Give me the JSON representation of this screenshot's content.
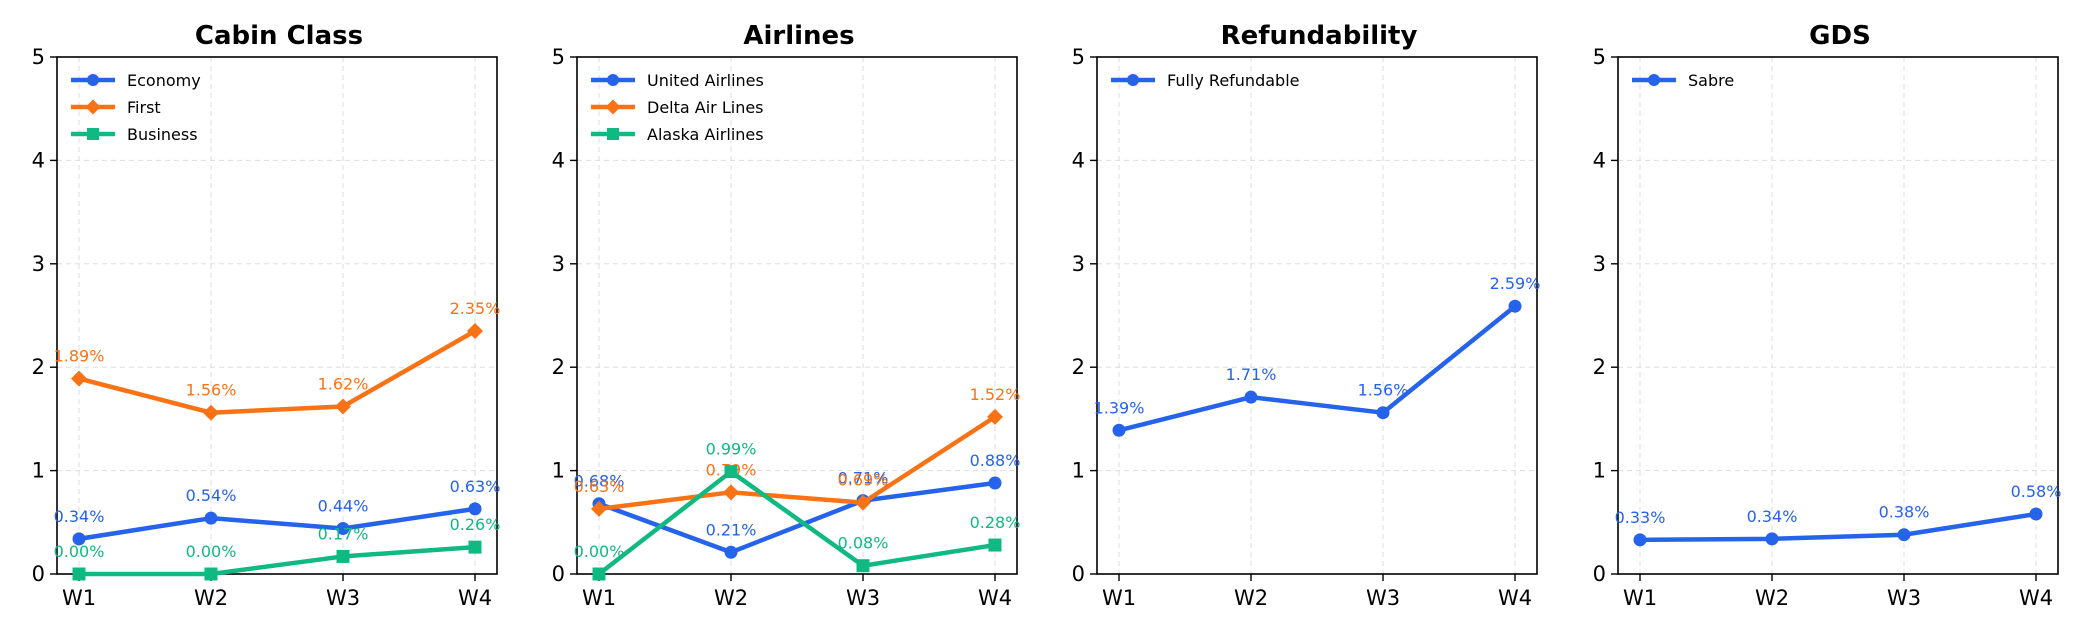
{
  "chart_data": [
    {
      "type": "line",
      "title": "Cabin Class",
      "categories": [
        "W1",
        "W2",
        "W3",
        "W4"
      ],
      "ylim": [
        0,
        5
      ],
      "yticks": [
        "0",
        "1",
        "2",
        "3",
        "4",
        "5"
      ],
      "grid": true,
      "legend_placement": "top-left",
      "series": [
        {
          "name": "Economy",
          "values": [
            0.34,
            0.54,
            0.44,
            0.63
          ],
          "labels": [
            "0.34%",
            "0.54%",
            "0.44%",
            "0.63%"
          ],
          "color": "#2563eb",
          "marker": "circle"
        },
        {
          "name": "First",
          "values": [
            1.89,
            1.56,
            1.62,
            2.35
          ],
          "labels": [
            "1.89%",
            "1.56%",
            "1.62%",
            "2.35%"
          ],
          "color": "#f97316",
          "marker": "diamond"
        },
        {
          "name": "Business",
          "values": [
            0.0,
            0.0,
            0.17,
            0.26
          ],
          "labels": [
            "0.00%",
            "0.00%",
            "0.17%",
            "0.26%"
          ],
          "color": "#10b981",
          "marker": "square"
        }
      ]
    },
    {
      "type": "line",
      "title": "Airlines",
      "categories": [
        "W1",
        "W2",
        "W3",
        "W4"
      ],
      "ylim": [
        0,
        5
      ],
      "yticks": [
        "0",
        "1",
        "2",
        "3",
        "4",
        "5"
      ],
      "grid": true,
      "legend_placement": "top-left",
      "series": [
        {
          "name": "United Airlines",
          "values": [
            0.68,
            0.21,
            0.71,
            0.88
          ],
          "labels": [
            "0.68%",
            "0.21%",
            "0.71%",
            "0.88%"
          ],
          "color": "#2563eb",
          "marker": "circle"
        },
        {
          "name": "Delta Air Lines",
          "values": [
            0.63,
            0.79,
            0.69,
            1.52
          ],
          "labels": [
            "0.63%",
            "0.79%",
            "0.69%",
            "1.52%"
          ],
          "color": "#f97316",
          "marker": "diamond"
        },
        {
          "name": "Alaska Airlines",
          "values": [
            0.0,
            0.99,
            0.08,
            0.28
          ],
          "labels": [
            "0.00%",
            "0.99%",
            "0.08%",
            "0.28%"
          ],
          "color": "#10b981",
          "marker": "square"
        }
      ]
    },
    {
      "type": "line",
      "title": "Refundability",
      "categories": [
        "W1",
        "W2",
        "W3",
        "W4"
      ],
      "ylim": [
        0,
        5
      ],
      "yticks": [
        "0",
        "1",
        "2",
        "3",
        "4",
        "5"
      ],
      "grid": true,
      "legend_placement": "top-left",
      "series": [
        {
          "name": "Fully Refundable",
          "values": [
            1.39,
            1.71,
            1.56,
            2.59
          ],
          "labels": [
            "1.39%",
            "1.71%",
            "1.56%",
            "2.59%"
          ],
          "color": "#2563eb",
          "marker": "circle"
        }
      ]
    },
    {
      "type": "line",
      "title": "GDS",
      "categories": [
        "W1",
        "W2",
        "W3",
        "W4"
      ],
      "ylim": [
        0,
        5
      ],
      "yticks": [
        "0",
        "1",
        "2",
        "3",
        "4",
        "5"
      ],
      "grid": true,
      "legend_placement": "top-left",
      "series": [
        {
          "name": "Sabre",
          "values": [
            0.33,
            0.34,
            0.38,
            0.58
          ],
          "labels": [
            "0.33%",
            "0.34%",
            "0.38%",
            "0.58%"
          ],
          "color": "#2563eb",
          "marker": "circle"
        }
      ]
    }
  ]
}
